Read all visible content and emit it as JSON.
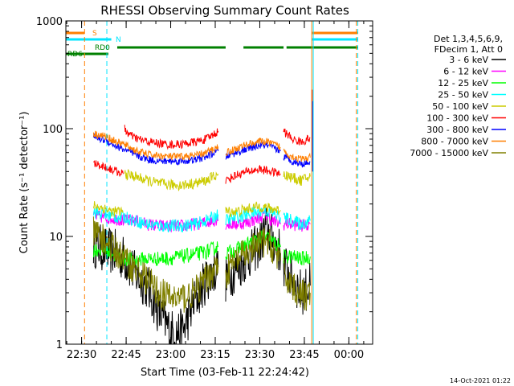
{
  "chart_data": {
    "type": "line",
    "title": "RHESSI Observing Summary Count Rates",
    "xlabel": "Start Time (03-Feb-11 22:24:42)",
    "ylabel": "Count Rate (s⁻¹ detector⁻¹)",
    "yscale": "log",
    "ylim": [
      1,
      1000
    ],
    "xlim": [
      "22:24:42",
      "00:08:00"
    ],
    "y_ticks": [
      {
        "label": "1",
        "value": 1
      },
      {
        "label": "10",
        "value": 10
      },
      {
        "label": "100",
        "value": 100
      },
      {
        "label": "1000",
        "value": 1000
      }
    ],
    "x_ticks": [
      {
        "label": "22:30",
        "minute": 30
      },
      {
        "label": "22:45",
        "minute": 45
      },
      {
        "label": "23:00",
        "minute": 60
      },
      {
        "label": "23:15",
        "minute": 75
      },
      {
        "label": "23:30",
        "minute": 90
      },
      {
        "label": "23:45",
        "minute": 105
      },
      {
        "label": "00:00",
        "minute": 120
      }
    ],
    "legend_header": [
      "Det 1,3,4,5,6,9,",
      "FDecim 1, Att 0"
    ],
    "legend_position": "right",
    "timestamp": "14-Oct-2021 01:22",
    "flag_labels": {
      "saa": "S",
      "night": "N",
      "decim": "RD0",
      "rd6": "RD6"
    },
    "flags": {
      "saa": {
        "color": "#ff7f00",
        "segments": [
          [
            24.7,
            31
          ],
          [
            107.5,
            123
          ]
        ]
      },
      "night": {
        "color": "#00e5ff",
        "segments": [
          [
            24.7,
            40
          ],
          [
            107.5,
            123
          ]
        ]
      },
      "decim": {
        "color": "#008000",
        "segments": [
          [
            42,
            78.5
          ],
          [
            84.5,
            98
          ],
          [
            99,
            123
          ]
        ]
      },
      "rd6": {
        "color": "#008000",
        "segments": [
          [
            24.7,
            39
          ]
        ]
      }
    },
    "vlines": [
      {
        "minute": 24.7,
        "color": "#00e5ff",
        "dash": "solid"
      },
      {
        "minute": 31,
        "color": "#ff7f00",
        "dash": "dash"
      },
      {
        "minute": 38.5,
        "color": "#00e5ff",
        "dash": "dash"
      },
      {
        "minute": 107.5,
        "color": "#ff7f00",
        "dash": "solid"
      },
      {
        "minute": 108,
        "color": "#00e5ff",
        "dash": "solid"
      },
      {
        "minute": 122.5,
        "color": "#ff7f00",
        "dash": "dash"
      },
      {
        "minute": 123,
        "color": "#00e5ff",
        "dash": "dash"
      }
    ],
    "series": [
      {
        "name": "3 - 6 keV",
        "color": "#000000",
        "noise": 0.22,
        "segments": [
          [
            [
              34,
              8.5
            ],
            [
              38,
              7.5
            ],
            [
              42,
              7
            ],
            [
              45,
              6
            ],
            [
              48,
              4.5
            ],
            [
              52,
              3.5
            ],
            [
              56,
              2
            ],
            [
              60,
              1.3
            ],
            [
              64,
              1.3
            ],
            [
              68,
              2.5
            ],
            [
              72,
              4
            ],
            [
              76,
              5.2
            ]
          ],
          [
            [
              78.5,
              4
            ],
            [
              82,
              5
            ],
            [
              86,
              6.5
            ],
            [
              90,
              8.5
            ],
            [
              92,
              12
            ],
            [
              94,
              10
            ],
            [
              97,
              7
            ]
          ],
          [
            [
              98,
              5.5
            ],
            [
              101,
              4
            ],
            [
              104,
              3
            ],
            [
              107,
              3.5
            ]
          ]
        ]
      },
      {
        "name": "6 - 12 keV",
        "color": "#ff00ff",
        "noise": 0.06,
        "segments": [
          [
            [
              34,
              15.5
            ],
            [
              38,
              15
            ],
            [
              42,
              14.5
            ],
            [
              45,
              14
            ],
            [
              48,
              14
            ],
            [
              52,
              13
            ],
            [
              56,
              12.5
            ],
            [
              60,
              12.5
            ],
            [
              64,
              12.5
            ],
            [
              68,
              13
            ],
            [
              72,
              13.5
            ],
            [
              76,
              14.5
            ]
          ],
          [
            [
              78.5,
              13
            ],
            [
              82,
              13
            ],
            [
              86,
              13.5
            ],
            [
              90,
              15
            ],
            [
              92,
              16
            ],
            [
              94,
              14
            ],
            [
              97,
              13
            ]
          ],
          [
            [
              98,
              13
            ],
            [
              101,
              13
            ],
            [
              104,
              12.5
            ],
            [
              107,
              13
            ]
          ]
        ]
      },
      {
        "name": "12 - 25 keV",
        "color": "#00ff00",
        "noise": 0.07,
        "segments": [
          [
            [
              34,
              7.5
            ],
            [
              38,
              7.5
            ],
            [
              42,
              6.5
            ],
            [
              45,
              6.2
            ],
            [
              48,
              6
            ],
            [
              52,
              6.2
            ],
            [
              56,
              6.2
            ],
            [
              60,
              6.3
            ],
            [
              64,
              6.5
            ],
            [
              68,
              6.8
            ],
            [
              72,
              7.2
            ],
            [
              76,
              8
            ]
          ],
          [
            [
              78.5,
              7
            ],
            [
              82,
              7.5
            ],
            [
              86,
              8.5
            ],
            [
              90,
              9.5
            ],
            [
              92,
              10
            ],
            [
              94,
              9
            ],
            [
              97,
              8
            ]
          ],
          [
            [
              98,
              6.5
            ],
            [
              101,
              6.5
            ],
            [
              104,
              6.2
            ],
            [
              107,
              6.5
            ]
          ]
        ]
      },
      {
        "name": "25 - 50 keV",
        "color": "#00ffff",
        "noise": 0.06,
        "segments": [
          [
            [
              34,
              17
            ],
            [
              38,
              16
            ],
            [
              42,
              15
            ],
            [
              45,
              15
            ],
            [
              48,
              14
            ],
            [
              52,
              13
            ],
            [
              56,
              12.5
            ],
            [
              60,
              12.5
            ],
            [
              64,
              12.5
            ],
            [
              68,
              13
            ],
            [
              72,
              14
            ],
            [
              76,
              16
            ]
          ],
          [
            [
              78.5,
              14
            ],
            [
              82,
              15
            ],
            [
              86,
              16
            ],
            [
              90,
              17
            ],
            [
              92,
              17.5
            ],
            [
              94,
              16.5
            ],
            [
              97,
              15
            ]
          ],
          [
            [
              98,
              15
            ],
            [
              101,
              14
            ],
            [
              104,
              13
            ],
            [
              107,
              14
            ]
          ]
        ]
      },
      {
        "name": "50 - 100 keV",
        "color": "#cccc00",
        "noise": 0.05,
        "segments": [
          [
            [
              34,
              19.5
            ],
            [
              38,
              18
            ],
            [
              40,
              17
            ],
            [
              44,
              17
            ]
          ],
          [
            [
              44.5,
              38
            ],
            [
              48,
              36
            ],
            [
              52,
              33
            ],
            [
              56,
              31
            ],
            [
              60,
              30
            ],
            [
              64,
              30
            ],
            [
              68,
              31
            ],
            [
              72,
              33
            ],
            [
              76,
              38
            ]
          ],
          [
            [
              78.5,
              17
            ],
            [
              82,
              17
            ],
            [
              86,
              18
            ],
            [
              90,
              19
            ],
            [
              94,
              18
            ],
            [
              97,
              17.5
            ]
          ],
          [
            [
              98,
              38
            ],
            [
              101,
              35
            ],
            [
              104,
              33
            ],
            [
              107,
              36
            ]
          ]
        ]
      },
      {
        "name": "100 - 300 keV",
        "color": "#ff0000",
        "noise": 0.04,
        "segments": [
          [
            [
              34,
              48
            ],
            [
              38,
              44
            ],
            [
              42,
              40
            ],
            [
              44,
              38
            ]
          ],
          [
            [
              44.5,
              100
            ],
            [
              46,
              88
            ],
            [
              48,
              82
            ],
            [
              52,
              76
            ],
            [
              56,
              73
            ],
            [
              60,
              71
            ],
            [
              64,
              72
            ],
            [
              68,
              75
            ],
            [
              72,
              80
            ],
            [
              76,
              95
            ]
          ],
          [
            [
              78.5,
              33
            ],
            [
              82,
              37
            ],
            [
              86,
              40
            ],
            [
              90,
              42
            ],
            [
              94,
              40
            ],
            [
              97,
              38
            ]
          ],
          [
            [
              98,
              95
            ],
            [
              101,
              80
            ],
            [
              104,
              75
            ],
            [
              107,
              82
            ]
          ]
        ]
      },
      {
        "name": "300 - 800 keV",
        "color": "#0000ff",
        "noise": 0.035,
        "segments": [
          [
            [
              34,
              84
            ],
            [
              38,
              78
            ],
            [
              42,
              68
            ],
            [
              45,
              63
            ],
            [
              48,
              57
            ],
            [
              52,
              52
            ],
            [
              56,
              50
            ],
            [
              60,
              50
            ],
            [
              64,
              50
            ],
            [
              68,
              51
            ],
            [
              72,
              55
            ],
            [
              76,
              62
            ]
          ],
          [
            [
              78.5,
              55
            ],
            [
              82,
              60
            ],
            [
              86,
              65
            ],
            [
              90,
              70
            ],
            [
              92,
              70
            ],
            [
              94,
              67
            ],
            [
              97,
              62
            ]
          ],
          [
            [
              98,
              55
            ],
            [
              101,
              50
            ],
            [
              104,
              47
            ],
            [
              107,
              49
            ]
          ]
        ]
      },
      {
        "name": "800 - 7000 keV",
        "color": "#ff7f00",
        "noise": 0.035,
        "segments": [
          [
            [
              34,
              90
            ],
            [
              38,
              85
            ],
            [
              42,
              75
            ],
            [
              45,
              70
            ],
            [
              48,
              63
            ],
            [
              52,
              58
            ],
            [
              56,
              56
            ],
            [
              60,
              55
            ],
            [
              64,
              55
            ],
            [
              68,
              56
            ],
            [
              72,
              60
            ],
            [
              76,
              68
            ]
          ],
          [
            [
              78.5,
              60
            ],
            [
              82,
              65
            ],
            [
              86,
              72
            ],
            [
              90,
              76
            ],
            [
              92,
              76
            ],
            [
              94,
              73
            ],
            [
              97,
              67
            ]
          ],
          [
            [
              98,
              62
            ],
            [
              101,
              55
            ],
            [
              104,
              52
            ],
            [
              107,
              54
            ]
          ]
        ]
      },
      {
        "name": "7000 - 15000 keV",
        "color": "#808000",
        "noise": 0.15,
        "segments": [
          [
            [
              34,
              11
            ],
            [
              38,
              9
            ],
            [
              42,
              7
            ],
            [
              45,
              6
            ],
            [
              48,
              5
            ],
            [
              52,
              4
            ],
            [
              56,
              3
            ],
            [
              60,
              2.7
            ],
            [
              64,
              2.7
            ],
            [
              68,
              3
            ],
            [
              72,
              4
            ],
            [
              76,
              5.5
            ]
          ],
          [
            [
              78.5,
              4.5
            ],
            [
              82,
              6
            ],
            [
              86,
              7
            ],
            [
              90,
              8.5
            ],
            [
              92,
              9
            ],
            [
              94,
              8
            ],
            [
              97,
              6
            ]
          ],
          [
            [
              98,
              4.5
            ],
            [
              101,
              3.5
            ],
            [
              104,
              2.8
            ],
            [
              107,
              3
            ]
          ]
        ]
      }
    ]
  }
}
